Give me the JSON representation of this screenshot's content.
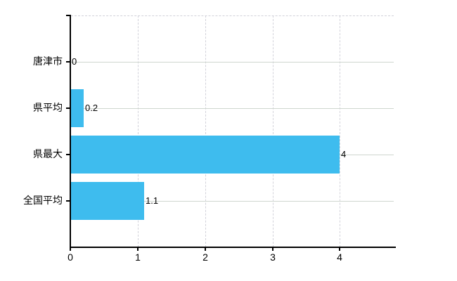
{
  "chart_data": {
    "type": "bar",
    "orientation": "horizontal",
    "title": "",
    "categories": [
      "唐津市",
      "県平均",
      "県最大",
      "全国平均"
    ],
    "values": [
      0,
      0.2,
      4,
      1.1
    ],
    "value_labels": [
      "0",
      "0.2",
      "4",
      "1.1"
    ],
    "x_ticks": [
      0,
      1,
      2,
      3,
      4
    ],
    "x_tick_labels": [
      "0",
      "1",
      "2",
      "3",
      "4"
    ],
    "xlim": [
      0,
      4.8
    ],
    "grid": {
      "horizontal_style": "solid",
      "vertical_style": "dashed",
      "top_border_style": "dashed"
    },
    "legend": "none",
    "colors": {
      "bar": "#3ebcee",
      "axis": "#000000",
      "gridline_horizontal": "#cfd6cf",
      "gridline_vertical": "#d2d2da",
      "text": "#000000",
      "background": "#ffffff"
    }
  }
}
